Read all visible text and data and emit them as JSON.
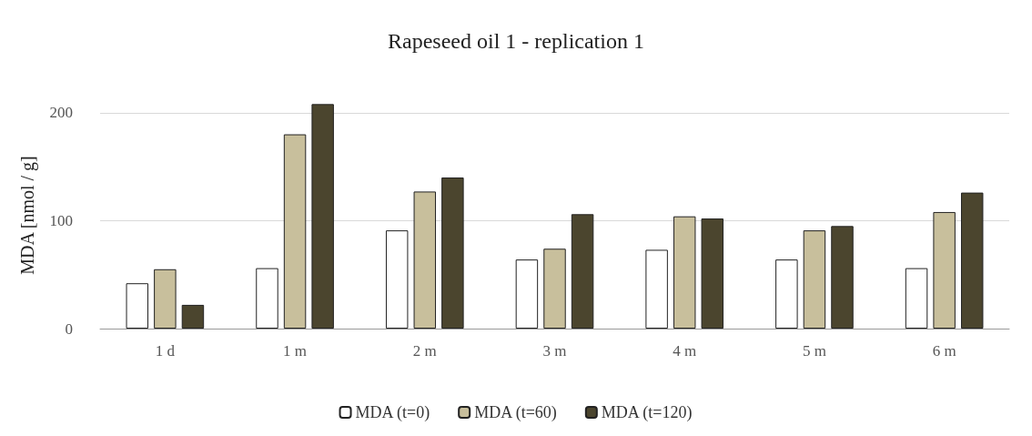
{
  "chart_data": {
    "type": "bar",
    "title": "Rapeseed oil 1 - replication 1",
    "ylabel": "MDA [nmol / g]",
    "categories": [
      "1 d",
      "1 m",
      "2 m",
      "3 m",
      "4 m",
      "5 m",
      "6 m"
    ],
    "series": [
      {
        "name": "MDA (t=0)",
        "color": "#ffffff",
        "values": [
          42,
          56,
          91,
          64,
          73,
          64,
          56
        ]
      },
      {
        "name": "MDA (t=60)",
        "color": "#c8bf9c",
        "values": [
          55,
          180,
          127,
          74,
          104,
          91,
          108
        ]
      },
      {
        "name": "MDA (t=120)",
        "color": "#4b452e",
        "values": [
          22,
          208,
          140,
          106,
          102,
          95,
          126
        ]
      }
    ],
    "ylim": [
      0,
      210
    ],
    "yticks": [
      0,
      100,
      200
    ],
    "grid": "y",
    "legend": "bottom"
  }
}
